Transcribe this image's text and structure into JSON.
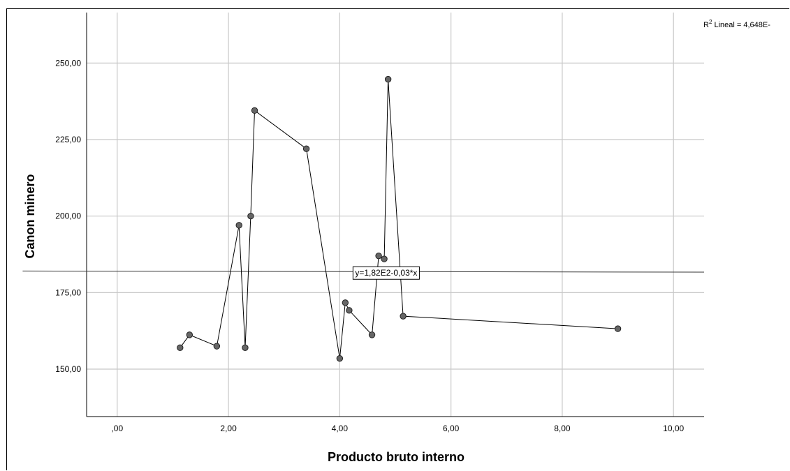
{
  "chart_data": {
    "type": "line",
    "title": "",
    "xlabel": "Producto bruto interno",
    "ylabel": "Canon minero",
    "xlim": [
      -0.55,
      10.55
    ],
    "ylim": [
      134.5,
      266.5
    ],
    "xticks": [
      0,
      2,
      4,
      6,
      8,
      10
    ],
    "xtick_labels": [
      ",00",
      "2,00",
      "4,00",
      "6,00",
      "8,00",
      "10,00"
    ],
    "yticks": [
      150,
      175,
      200,
      225,
      250
    ],
    "ytick_labels": [
      "150,00",
      "175,00",
      "200,00",
      "225,00",
      "250,00"
    ],
    "grid": true,
    "series": [
      {
        "points": [
          {
            "x": 1.13,
            "y": 157.0
          },
          {
            "x": 1.3,
            "y": 161.2
          },
          {
            "x": 1.79,
            "y": 157.5
          },
          {
            "x": 2.19,
            "y": 197.0
          },
          {
            "x": 2.3,
            "y": 157.0
          },
          {
            "x": 2.4,
            "y": 200.0
          },
          {
            "x": 2.47,
            "y": 234.5
          },
          {
            "x": 3.4,
            "y": 222.0
          },
          {
            "x": 4.0,
            "y": 153.5
          },
          {
            "x": 4.1,
            "y": 171.7
          },
          {
            "x": 4.17,
            "y": 169.2
          },
          {
            "x": 4.58,
            "y": 161.2
          },
          {
            "x": 4.7,
            "y": 187.0
          },
          {
            "x": 4.8,
            "y": 186.0
          },
          {
            "x": 4.87,
            "y": 244.7
          },
          {
            "x": 5.14,
            "y": 167.3
          },
          {
            "x": 9.0,
            "y": 163.2
          }
        ]
      }
    ],
    "fit_line": {
      "intercept": 182.0,
      "slope": -0.03,
      "equation_label": "y=1,82E2-0,03*x"
    },
    "r2_label": {
      "prefix": "R",
      "superscript": "2",
      "text": " Lineal = 4,648E-"
    }
  }
}
